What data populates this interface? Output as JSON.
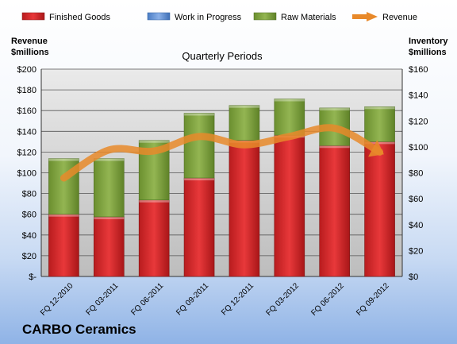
{
  "company": "CARBO Ceramics",
  "chart_data": {
    "type": "bar",
    "title": "Quarterly Periods",
    "left_axis_label_line1": "Revenue",
    "left_axis_label_line2": "$millions",
    "right_axis_label_line1": "Inventory",
    "right_axis_label_line2": "$millions",
    "categories": [
      "FQ 12-2010",
      "FQ 03-2011",
      "FQ 06-2011",
      "FQ 09-2011",
      "FQ 12-2011",
      "FQ 03-2012",
      "FQ 06-2012",
      "FQ 09-2012"
    ],
    "left_ylim": [
      0,
      200
    ],
    "right_ylim": [
      0,
      160
    ],
    "left_ticks": [
      "$-",
      "$20",
      "$40",
      "$60",
      "$80",
      "$100",
      "$120",
      "$140",
      "$160",
      "$180",
      "$200"
    ],
    "right_ticks": [
      "$0",
      "$20",
      "$40",
      "$60",
      "$80",
      "$100",
      "$120",
      "$140",
      "$160"
    ],
    "grid": true,
    "legend_position": "top",
    "series": [
      {
        "name": "Finished Goods",
        "axis": "right",
        "stack": true,
        "color": "#d9282a",
        "values": [
          48,
          46,
          59,
          76,
          105,
          109,
          101,
          104
        ]
      },
      {
        "name": "Work in Progress",
        "axis": "right",
        "stack": true,
        "color": "#5b8fd6",
        "values": [
          0,
          0,
          0,
          0,
          0,
          0,
          0,
          0
        ]
      },
      {
        "name": "Raw Materials",
        "axis": "right",
        "stack": true,
        "color": "#7da33e",
        "values": [
          43,
          45,
          46,
          50,
          27,
          28,
          29,
          27
        ]
      },
      {
        "name": "Revenue",
        "axis": "left",
        "type": "line",
        "color": "#e8892a",
        "values": [
          95,
          122,
          121,
          135,
          127,
          135,
          143,
          120
        ]
      }
    ]
  }
}
